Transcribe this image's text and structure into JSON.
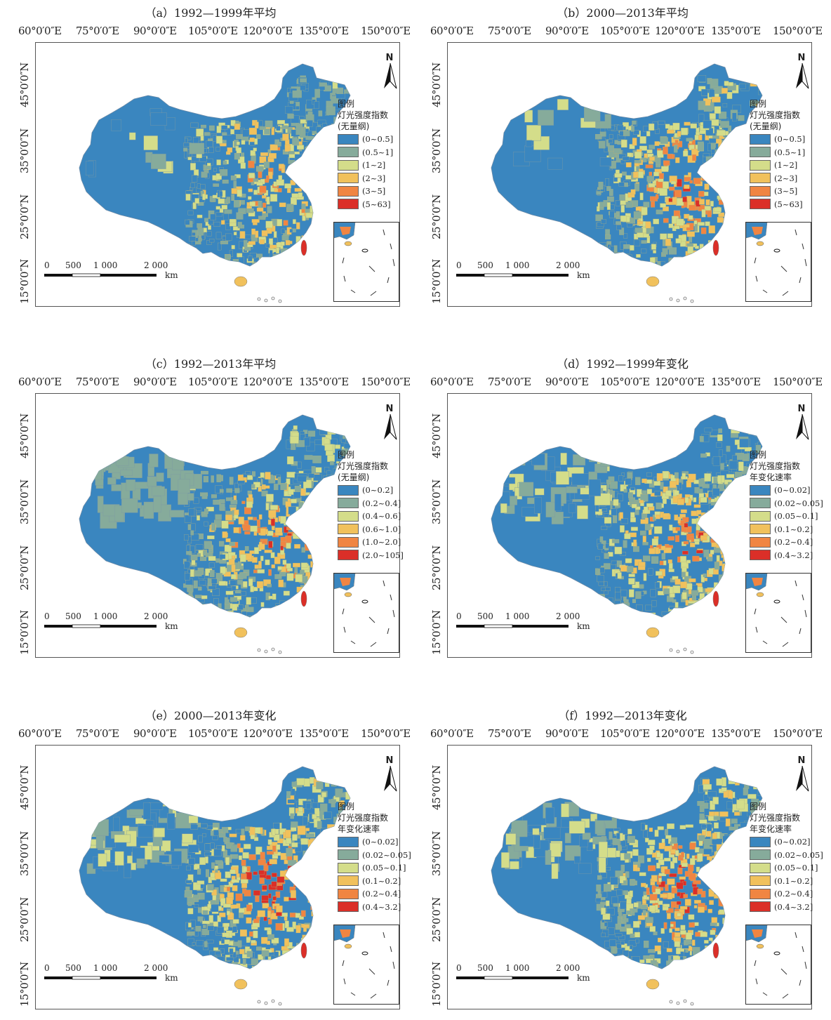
{
  "lon_labels": [
    "60°0′0″E",
    "75°0′0″E",
    "90°0′0″E",
    "105°0′0″E",
    "120°0′0″E",
    "135°0′0″E",
    "150°0′0″E"
  ],
  "lat_labels": [
    "45°0′0″N",
    "35°0′0″N",
    "25°0′0″N",
    "15°0′0″N"
  ],
  "north_label": "N",
  "scale": {
    "t0": "0",
    "t500": "500",
    "t1000": "1 000",
    "t2000": "2 000",
    "unit": "km"
  },
  "colors": [
    "#3a86bf",
    "#86ab9b",
    "#d4dd8a",
    "#f1c15c",
    "#f08542",
    "#db2f28"
  ],
  "panels": [
    {
      "title": "（a）1992—1999年平均",
      "legend_title": [
        "图例",
        "灯光强度指数",
        "(无量纲)"
      ],
      "classes": [
        "(0~0.5]",
        "(0.5~1]",
        "(1~2]",
        "(2~3]",
        "(3~5]",
        "(5~63]"
      ]
    },
    {
      "title": "（b）2000—2013年平均",
      "legend_title": [
        "图例",
        "灯光强度指数",
        "(无量纲)"
      ],
      "classes": [
        "(0~0.5]",
        "(0.5~1]",
        "(1~2]",
        "(2~3]",
        "(3~5]",
        "(5~63]"
      ]
    },
    {
      "title": "（c）1992—2013年平均",
      "legend_title": [
        "图例",
        "灯光强度指数",
        "(无量纲)"
      ],
      "classes": [
        "(0~0.2]",
        "(0.2~0.4]",
        "(0.4~0.6]",
        "(0.6~1.0]",
        "(1.0~2.0]",
        "(2.0~105]"
      ]
    },
    {
      "title": "（d）1992—1999年变化",
      "legend_title": [
        "图例",
        "灯光强度指数",
        "年变化速率"
      ],
      "classes": [
        "(0~0.02]",
        "(0.02~0.05]",
        "(0.05~0.1]",
        "(0.1~0.2]",
        "(0.2~0.4]",
        "(0.4~3.2]"
      ]
    },
    {
      "title": "（e）2000—2013年变化",
      "legend_title": [
        "图例",
        "灯光强度指数",
        "年变化速率"
      ],
      "classes": [
        "(0~0.02]",
        "(0.02~0.05]",
        "(0.05~0.1]",
        "(0.1~0.2]",
        "(0.2~0.4]",
        "(0.4~3.2]"
      ]
    },
    {
      "title": "（f）1992—2013年变化",
      "legend_title": [
        "图例",
        "灯光强度指数",
        "年变化速率"
      ],
      "classes": [
        "(0~0.02]",
        "(0.02~0.05]",
        "(0.05~0.1]",
        "(0.1~0.2]",
        "(0.2~0.4]",
        "(0.4~3.2]"
      ]
    }
  ]
}
